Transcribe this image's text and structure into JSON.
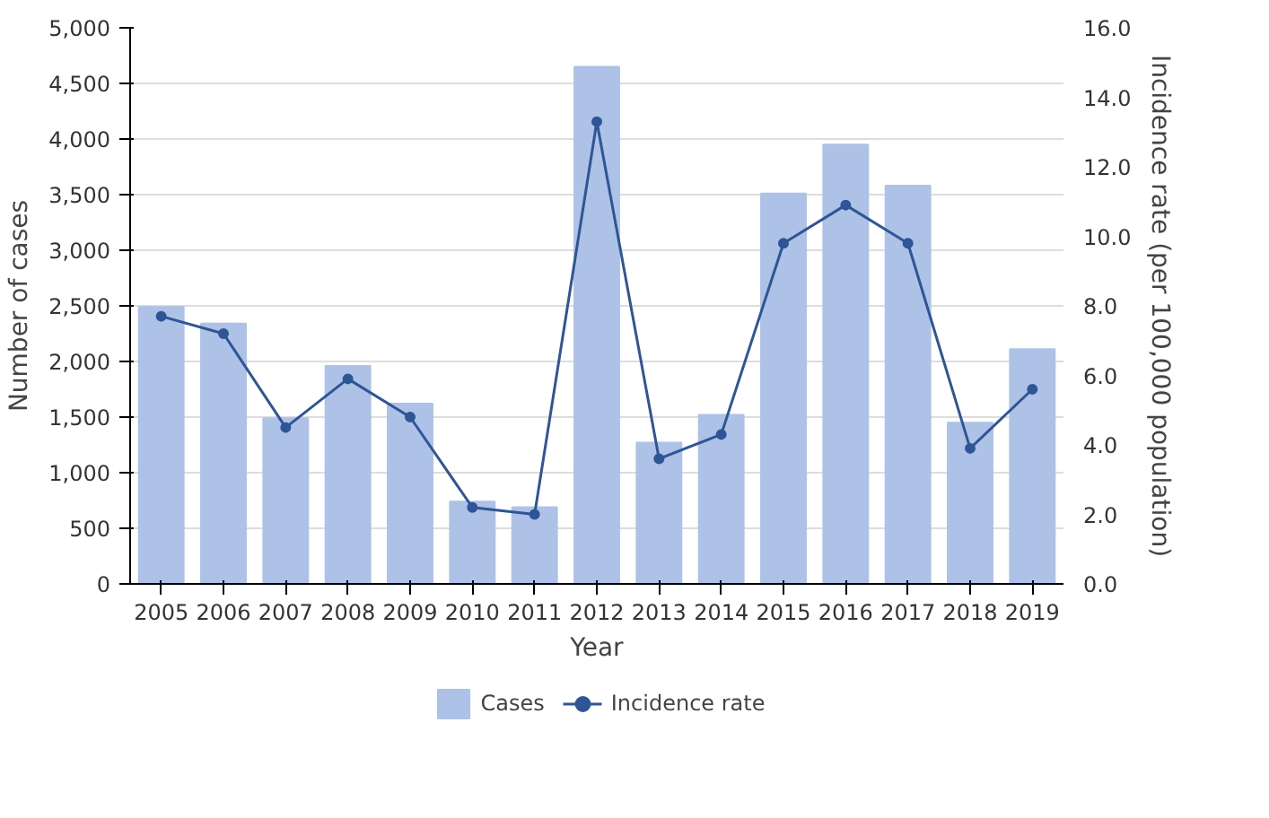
{
  "chart_data": {
    "type": "bar",
    "xlabel": "Year",
    "ylabel": "Number of cases",
    "y2label": "Incidence rate (per 100,000 population)",
    "categories": [
      "2005",
      "2006",
      "2007",
      "2008",
      "2009",
      "2010",
      "2011",
      "2012",
      "2013",
      "2014",
      "2015",
      "2016",
      "2017",
      "2018",
      "2019"
    ],
    "series": [
      {
        "name": "Cases",
        "color": "#adc2e6",
        "values": [
          2490,
          2340,
          1490,
          1960,
          1620,
          740,
          690,
          4650,
          1270,
          1520,
          3510,
          3950,
          3580,
          1450,
          2110
        ]
      },
      {
        "name": "Incidence rate",
        "type": "line",
        "axis": "y2",
        "color": "#2f5597",
        "marker": "circle",
        "values": [
          7.7,
          7.2,
          4.5,
          5.9,
          4.8,
          2.2,
          2.0,
          13.3,
          3.6,
          4.3,
          9.8,
          10.9,
          9.8,
          3.9,
          5.6
        ]
      }
    ],
    "ylim": [
      0,
      5000
    ],
    "yticks": [
      {
        "value": 0,
        "label": "0"
      },
      {
        "value": 500,
        "label": "500"
      },
      {
        "value": 1000,
        "label": "1,000"
      },
      {
        "value": 1500,
        "label": "1,500"
      },
      {
        "value": 2000,
        "label": "2,000"
      },
      {
        "value": 2500,
        "label": "2,500"
      },
      {
        "value": 3000,
        "label": "3,000"
      },
      {
        "value": 3500,
        "label": "3,500"
      },
      {
        "value": 4000,
        "label": "4,000"
      },
      {
        "value": 4500,
        "label": "4,500"
      },
      {
        "value": 5000,
        "label": "5,000"
      }
    ],
    "y2lim": [
      0,
      16
    ],
    "y2ticks": [
      {
        "value": 0,
        "label": "0.0"
      },
      {
        "value": 2,
        "label": "2.0"
      },
      {
        "value": 4,
        "label": "4.0"
      },
      {
        "value": 6,
        "label": "6.0"
      },
      {
        "value": 8,
        "label": "8.0"
      },
      {
        "value": 10,
        "label": "10.0"
      },
      {
        "value": 12,
        "label": "12.0"
      },
      {
        "value": 14,
        "label": "14.0"
      },
      {
        "value": 16,
        "label": "16.0"
      }
    ],
    "grid": "y",
    "legend": "bottom"
  }
}
